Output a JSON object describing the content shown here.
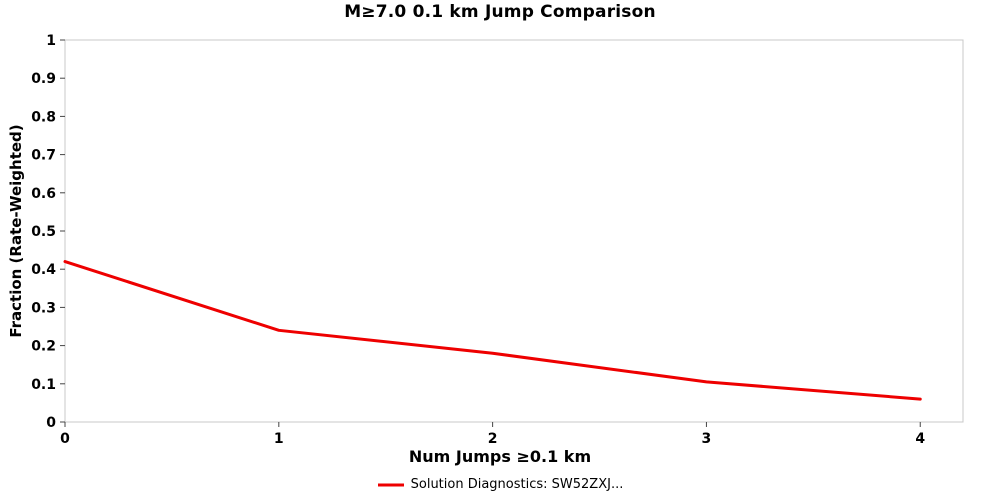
{
  "chart_data": {
    "type": "line",
    "title": "M≥7.0 0.1 km Jump Comparison",
    "xlabel": "Num Jumps ≥0.1 km",
    "ylabel": "Fraction (Rate-Weighted)",
    "xlim": [
      0,
      4.2
    ],
    "ylim": [
      0,
      1
    ],
    "x": [
      0,
      1,
      2,
      3,
      4
    ],
    "series": [
      {
        "name": "Solution Diagnostics: SW52ZXJ...",
        "color": "#ee0000",
        "values": [
          0.42,
          0.24,
          0.18,
          0.105,
          0.06
        ]
      }
    ],
    "xticks": {
      "values": [
        0,
        1,
        2,
        3,
        4
      ],
      "labels": [
        "0",
        "1",
        "2",
        "3",
        "4"
      ]
    },
    "yticks": {
      "values": [
        0,
        0.1,
        0.2,
        0.3,
        0.4,
        0.5,
        0.6,
        0.7,
        0.8,
        0.9,
        1
      ],
      "labels": [
        "0",
        "0.1",
        "0.2",
        "0.3",
        "0.4",
        "0.5",
        "0.6",
        "0.7",
        "0.8",
        "0.9",
        "1"
      ]
    },
    "grid": false,
    "legend_position": "bottom",
    "plot_border_color": "#c8c8c8",
    "tick_color": "#444444"
  }
}
